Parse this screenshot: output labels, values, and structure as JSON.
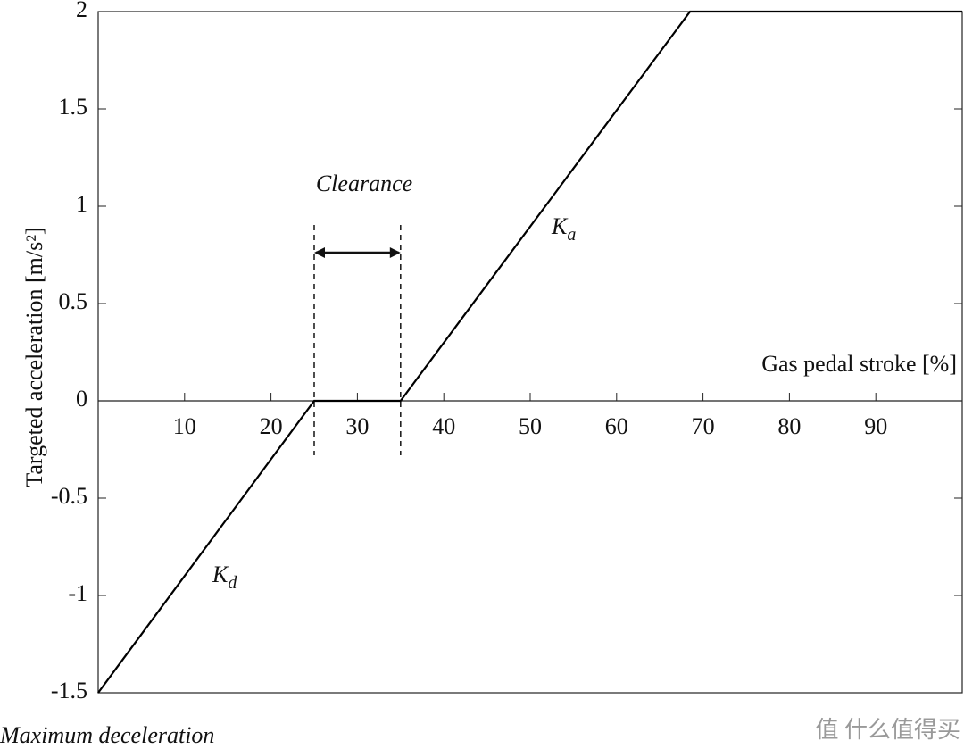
{
  "chart_data": {
    "type": "line",
    "x_label": "Gas pedal stroke [%]",
    "y_label": "Targeted acceleration [m/s²]",
    "x": [
      0,
      25,
      35,
      68.5,
      100
    ],
    "series": [
      {
        "color": "#000000",
        "values": [
          -1.5,
          0,
          0,
          2,
          2
        ]
      }
    ],
    "xlim": [
      0,
      100
    ],
    "xticks": [
      10,
      20,
      30,
      40,
      50,
      60,
      70,
      80,
      90
    ],
    "ylim": [
      -1.5,
      2
    ],
    "yticks": [
      2,
      1.5,
      1,
      0.5,
      0,
      -0.5,
      -1,
      -1.5
    ],
    "clearance": {
      "label": "Clearance",
      "x": [
        25,
        35
      ]
    },
    "accel_gain": {
      "main": "K",
      "sub": "a"
    },
    "decel_gain": {
      "main": "K",
      "sub": "d"
    },
    "min_label": "Maximum deceleration",
    "watermark": "值 什么值得买"
  }
}
